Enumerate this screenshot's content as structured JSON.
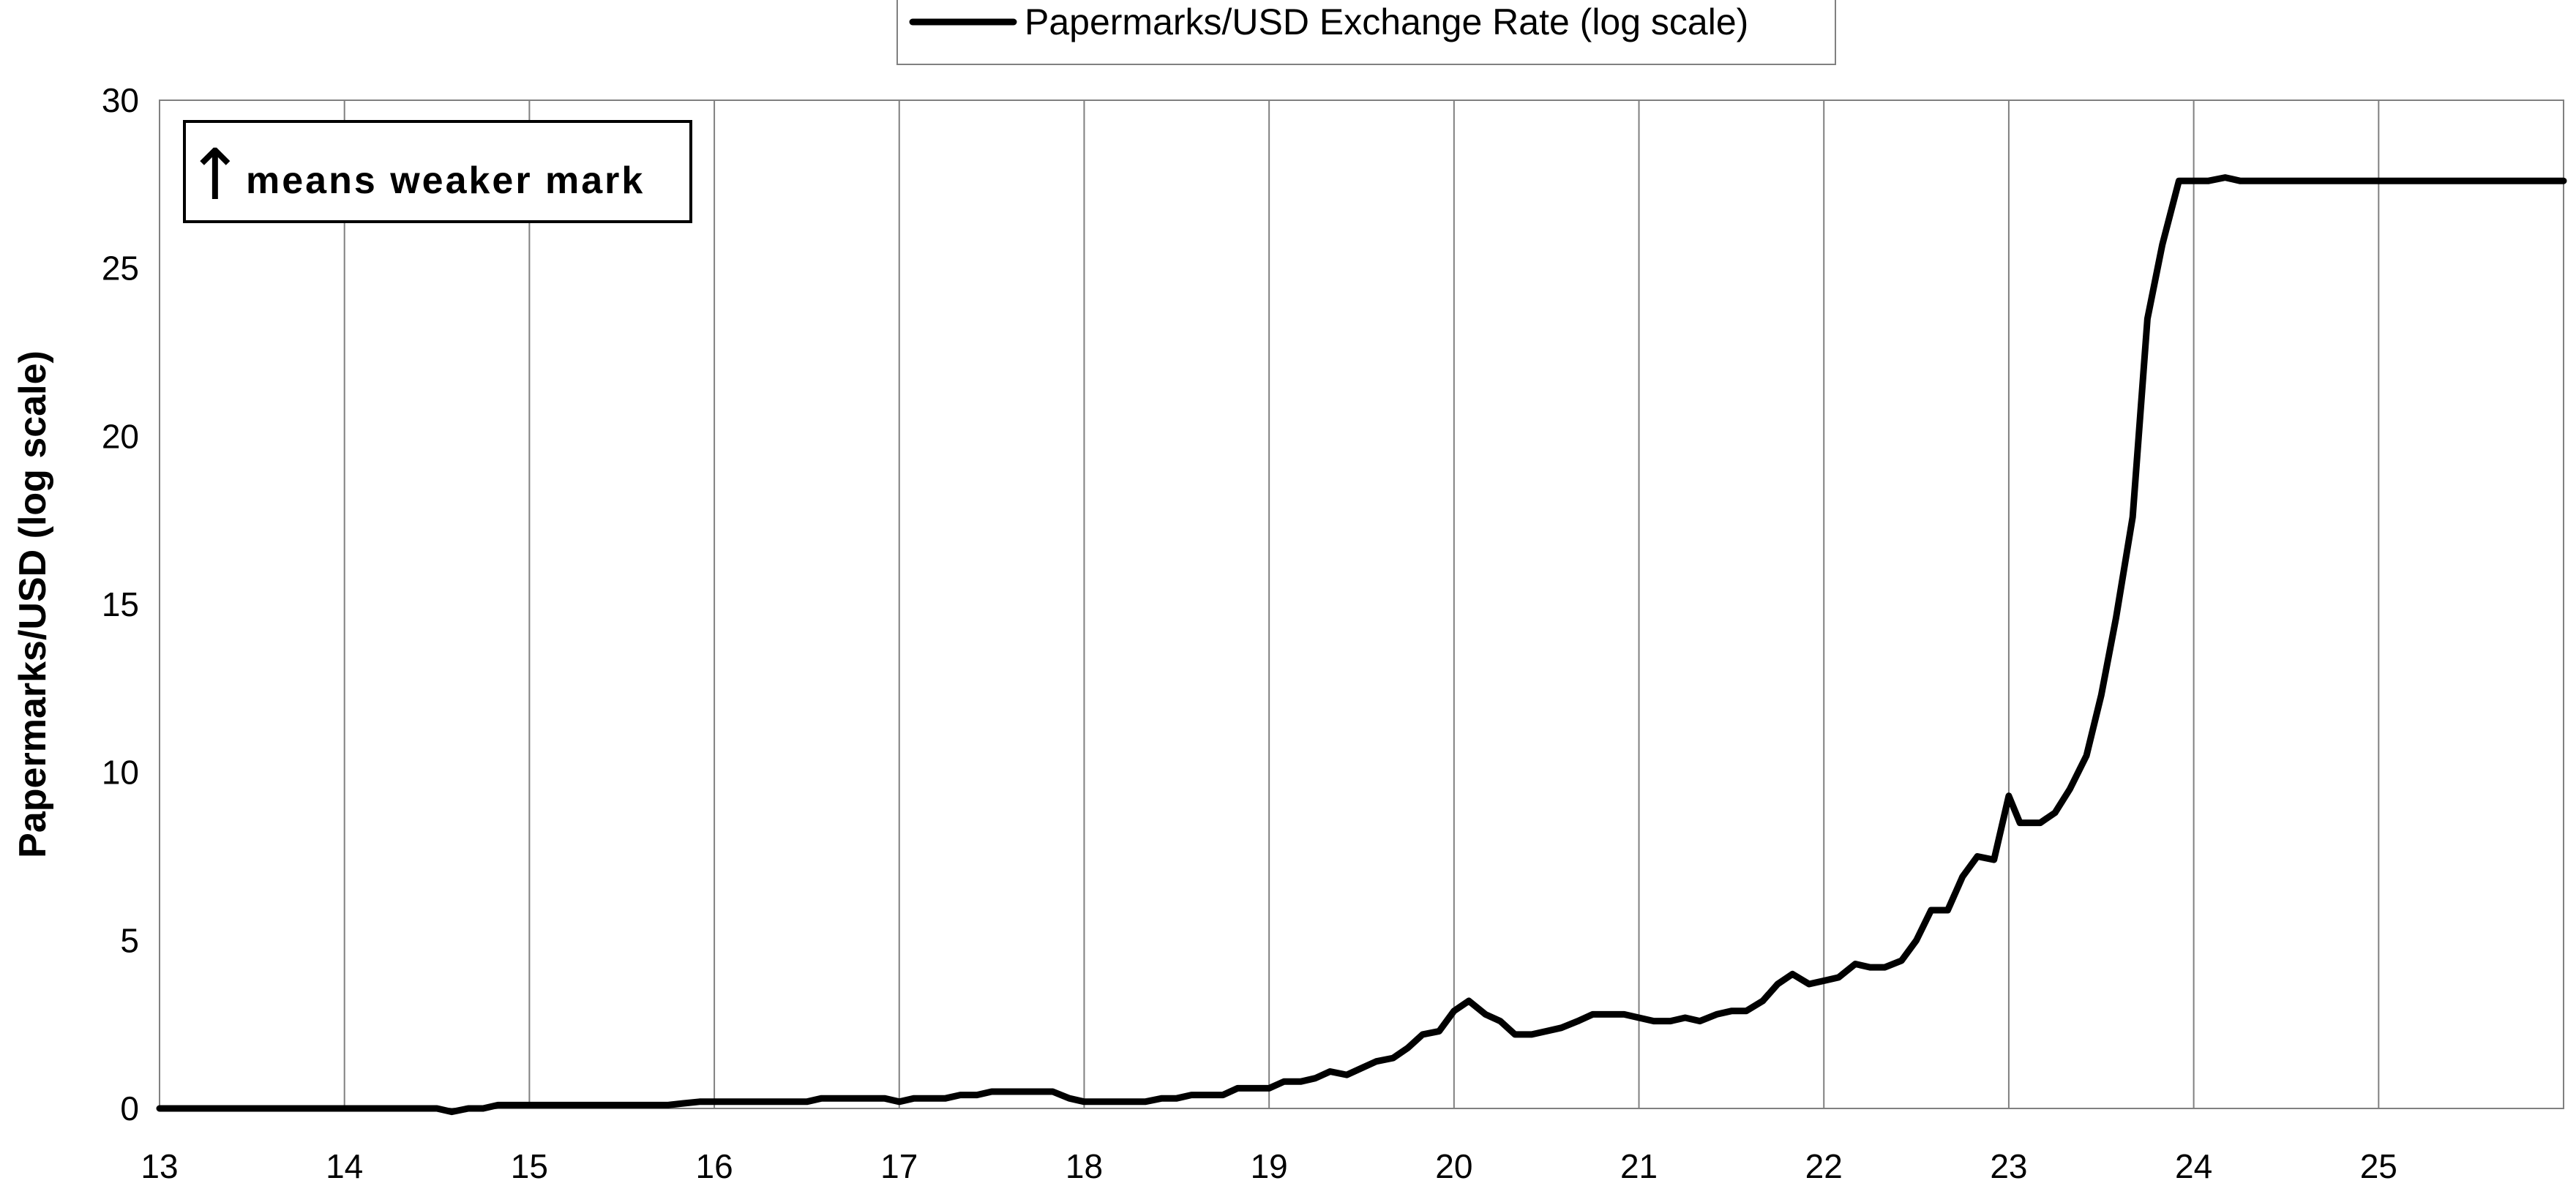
{
  "chart_data": {
    "type": "line",
    "title": "",
    "xlabel": "",
    "ylabel": "Papermarks/USD (log scale)",
    "x_ticks": [
      "13",
      "14",
      "15",
      "16",
      "17",
      "18",
      "19",
      "20",
      "21",
      "22",
      "23",
      "24",
      "25"
    ],
    "y_ticks": [
      "0",
      "5",
      "10",
      "15",
      "20",
      "25",
      "30"
    ],
    "xlim": [
      13,
      26
    ],
    "ylim": [
      0,
      30
    ],
    "grid": {
      "vertical": true,
      "horizontal": false
    },
    "legend": {
      "position": "top-center",
      "entries": [
        "Papermarks/USD Exchange Rate (log scale)"
      ]
    },
    "annotation": {
      "arrow": "↑",
      "text": "means weaker mark",
      "position": "top-left"
    },
    "colors": {
      "series": "#000000",
      "grid": "#808080"
    },
    "series": [
      {
        "name": "Papermarks/USD Exchange Rate (log scale)",
        "x": [
          13.0,
          13.5,
          14.0,
          14.5,
          14.58,
          14.67,
          14.75,
          14.83,
          15.0,
          15.5,
          15.75,
          15.83,
          15.92,
          16.0,
          16.5,
          16.58,
          16.67,
          16.75,
          16.92,
          17.0,
          17.08,
          17.25,
          17.33,
          17.42,
          17.5,
          17.67,
          17.83,
          17.92,
          18.0,
          18.17,
          18.33,
          18.42,
          18.5,
          18.58,
          18.67,
          18.75,
          18.83,
          18.92,
          19.0,
          19.08,
          19.17,
          19.25,
          19.33,
          19.42,
          19.5,
          19.58,
          19.67,
          19.75,
          19.83,
          19.92,
          20.0,
          20.08,
          20.17,
          20.25,
          20.33,
          20.42,
          20.5,
          20.58,
          20.67,
          20.75,
          20.83,
          20.92,
          21.0,
          21.08,
          21.17,
          21.25,
          21.33,
          21.42,
          21.5,
          21.58,
          21.67,
          21.75,
          21.83,
          21.92,
          22.0,
          22.08,
          22.17,
          22.25,
          22.33,
          22.42,
          22.5,
          22.58,
          22.67,
          22.75,
          22.83,
          22.92,
          23.0,
          23.06,
          23.17,
          23.25,
          23.33,
          23.42,
          23.5,
          23.58,
          23.67,
          23.75,
          23.83,
          23.92,
          24.0,
          24.08,
          24.17,
          24.25,
          24.5,
          25.0,
          25.5,
          26.0
        ],
        "y": [
          0.0,
          0.0,
          0.0,
          0.0,
          -0.1,
          0.0,
          0.0,
          0.1,
          0.1,
          0.1,
          0.1,
          0.15,
          0.2,
          0.2,
          0.2,
          0.3,
          0.3,
          0.3,
          0.3,
          0.2,
          0.3,
          0.3,
          0.4,
          0.4,
          0.5,
          0.5,
          0.5,
          0.3,
          0.2,
          0.2,
          0.2,
          0.3,
          0.3,
          0.4,
          0.4,
          0.4,
          0.6,
          0.6,
          0.6,
          0.8,
          0.8,
          0.9,
          1.1,
          1.0,
          1.2,
          1.4,
          1.5,
          1.8,
          2.2,
          2.3,
          2.9,
          3.2,
          2.8,
          2.6,
          2.2,
          2.2,
          2.3,
          2.4,
          2.6,
          2.8,
          2.8,
          2.8,
          2.7,
          2.6,
          2.6,
          2.7,
          2.6,
          2.8,
          2.9,
          2.9,
          3.2,
          3.7,
          4.0,
          3.7,
          3.8,
          3.9,
          4.3,
          4.2,
          4.2,
          4.4,
          5.0,
          5.9,
          5.9,
          6.9,
          7.5,
          7.4,
          9.3,
          8.5,
          8.5,
          8.8,
          9.5,
          10.5,
          12.3,
          14.6,
          17.6,
          23.5,
          25.7,
          27.6,
          27.6,
          27.6,
          27.7,
          27.6,
          27.6,
          27.6,
          27.6,
          27.6
        ]
      }
    ]
  }
}
